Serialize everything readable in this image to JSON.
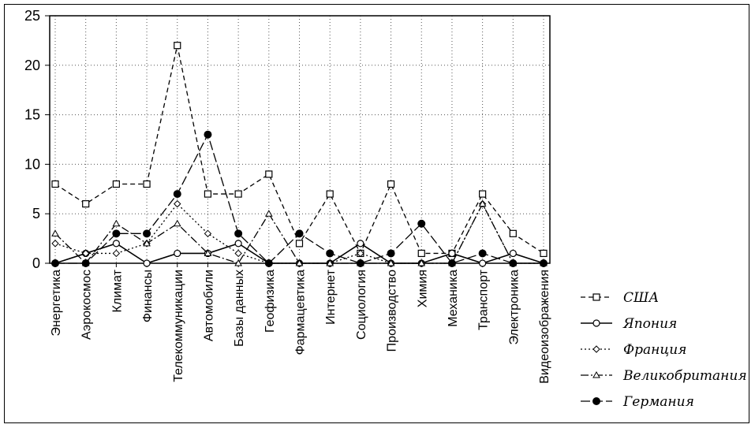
{
  "chart_data": {
    "type": "line",
    "title": "",
    "xlabel": "",
    "ylabel": "",
    "ylim": [
      0,
      25
    ],
    "yticks": [
      0,
      5,
      10,
      15,
      20,
      25
    ],
    "grid": true,
    "legend_position": "bottom-right",
    "categories": [
      "Энергетика",
      "Аэрокосмос",
      "Климат",
      "Финансы",
      "Телекоммуникации",
      "Автомобили",
      "Базы данных",
      "Геофизика",
      "Фармацевтика",
      "Интернет",
      "Социология",
      "Производство",
      "Химия",
      "Механика",
      "Транспорт",
      "Электроника",
      "Видеоизображения"
    ],
    "series": [
      {
        "name": "США",
        "marker": "square",
        "line": "dashed",
        "values": [
          8,
          6,
          8,
          8,
          22,
          7,
          7,
          9,
          2,
          7,
          1,
          8,
          1,
          1,
          7,
          3,
          1
        ]
      },
      {
        "name": "Япония",
        "marker": "circle-open",
        "line": "solid",
        "values": [
          0,
          1,
          2,
          0,
          1,
          1,
          2,
          0,
          0,
          0,
          2,
          0,
          0,
          1,
          0,
          1,
          0
        ]
      },
      {
        "name": "Франция",
        "marker": "diamond",
        "line": "dotted",
        "values": [
          2,
          1,
          1,
          2,
          6,
          3,
          1,
          0,
          0,
          0,
          1,
          0,
          0,
          0,
          6,
          0,
          0
        ]
      },
      {
        "name": "Великобритания",
        "marker": "triangle",
        "line": "dashdot",
        "values": [
          3,
          0,
          4,
          2,
          4,
          1,
          0,
          5,
          0,
          0,
          0,
          0,
          0,
          0,
          6,
          0,
          0
        ]
      },
      {
        "name": "Германия",
        "marker": "circle-filled",
        "line": "longdash",
        "values": [
          0,
          0,
          3,
          3,
          7,
          13,
          3,
          0,
          3,
          1,
          0,
          1,
          4,
          0,
          1,
          0,
          0
        ]
      }
    ]
  }
}
